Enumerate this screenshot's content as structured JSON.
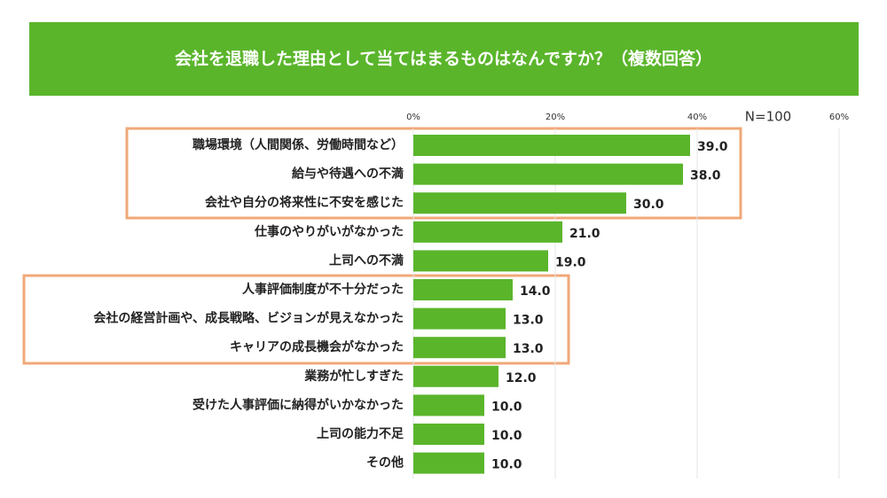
{
  "chart_data": {
    "type": "hbar",
    "title": "会社を退職した理由として当てはまるものはなんですか？（複数回答）",
    "annotation": "N=100",
    "categories": [
      "職場環境（人間関係、労働時間など）",
      "給与や待遇への不満",
      "会社や自分の将来性に不安を感じた",
      "仕事のやりがいがなかった",
      "上司への不満",
      "人事評価制度が不十分だった",
      "会社の経営計画や、成長戦略、ビジョンが見えなかった",
      "キャリアの成長機会がなかった",
      "業務が忙しすぎた",
      "受けた人事評価に納得がいかなかった",
      "上司の能力不足",
      "その他"
    ],
    "values": [
      39,
      38,
      30,
      21,
      19,
      14,
      13,
      13,
      12,
      10,
      10,
      10
    ],
    "value_labels": [
      "39.0",
      "38.0",
      "30.0",
      "21.0",
      "19.0",
      "14.0",
      "13.0",
      "13.0",
      "12.0",
      "10.0",
      "10.0",
      "10.0"
    ],
    "color": "#5ab52b",
    "xlim": [
      0,
      60
    ],
    "xticks": [
      {
        "value": 0,
        "label": "0%"
      },
      {
        "value": 20,
        "label": "20%"
      },
      {
        "value": 40,
        "label": "40%"
      },
      {
        "value": 60,
        "label": "60%"
      }
    ],
    "grid": true
  }
}
